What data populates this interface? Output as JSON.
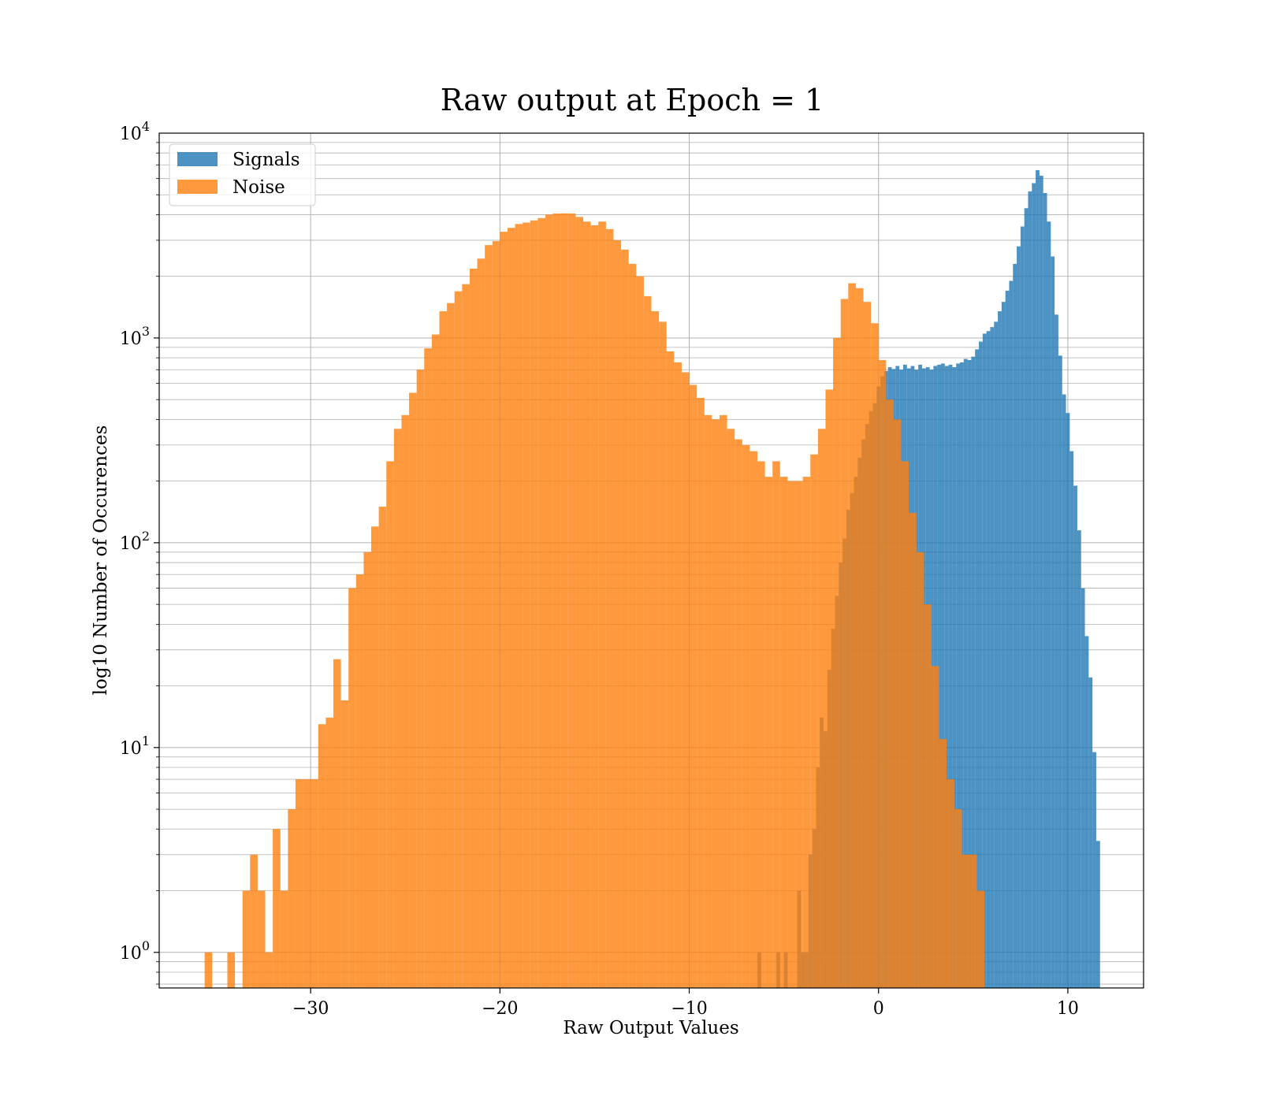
{
  "chart_data": {
    "type": "histogram",
    "title": "Raw output at Epoch = 1",
    "xlabel": "Raw Output Values",
    "ylabel": "log10 Number of Occurences",
    "xlim": [
      -38,
      14
    ],
    "ylim": [
      0.67,
      10000
    ],
    "yscale": "log",
    "grid": true,
    "legend_position": "top-left",
    "x_ticks": [
      {
        "value": -30,
        "label": "−30"
      },
      {
        "value": -20,
        "label": "−20"
      },
      {
        "value": -10,
        "label": "−10"
      },
      {
        "value": 0,
        "label": "0"
      },
      {
        "value": 10,
        "label": "10"
      }
    ],
    "y_ticks": [
      {
        "value": 1,
        "base": "10",
        "exp": "0"
      },
      {
        "value": 10,
        "base": "10",
        "exp": "1"
      },
      {
        "value": 100,
        "base": "10",
        "exp": "2"
      },
      {
        "value": 1000,
        "base": "10",
        "exp": "3"
      },
      {
        "value": 10000,
        "base": "10",
        "exp": "4"
      }
    ],
    "series": [
      {
        "name": "Signals",
        "color": "#1f77b4",
        "opacity": 0.8,
        "bins": [
          [
            -6.4,
            -6.2,
            1
          ],
          [
            -5.4,
            -5.2,
            1
          ],
          [
            -5.0,
            -4.8,
            1
          ],
          [
            -4.3,
            -4.1,
            2
          ],
          [
            -4.1,
            -3.9,
            1
          ],
          [
            -3.9,
            -3.7,
            1
          ],
          [
            -3.7,
            -3.5,
            3
          ],
          [
            -3.5,
            -3.3,
            4
          ],
          [
            -3.3,
            -3.1,
            8
          ],
          [
            -3.1,
            -2.9,
            14
          ],
          [
            -2.9,
            -2.7,
            12
          ],
          [
            -2.7,
            -2.5,
            24
          ],
          [
            -2.5,
            -2.3,
            38
          ],
          [
            -2.3,
            -2.1,
            55
          ],
          [
            -2.1,
            -1.9,
            80
          ],
          [
            -1.9,
            -1.7,
            105
          ],
          [
            -1.7,
            -1.5,
            145
          ],
          [
            -1.5,
            -1.3,
            175
          ],
          [
            -1.3,
            -1.1,
            210
          ],
          [
            -1.1,
            -0.9,
            260
          ],
          [
            -0.9,
            -0.7,
            320
          ],
          [
            -0.7,
            -0.5,
            380
          ],
          [
            -0.5,
            -0.3,
            440
          ],
          [
            -0.3,
            -0.1,
            480
          ],
          [
            -0.1,
            0.1,
            580
          ],
          [
            0.1,
            0.3,
            650
          ],
          [
            0.3,
            0.5,
            690
          ],
          [
            0.5,
            0.7,
            720
          ],
          [
            0.7,
            0.9,
            705
          ],
          [
            0.9,
            1.1,
            730
          ],
          [
            1.1,
            1.3,
            700
          ],
          [
            1.3,
            1.5,
            740
          ],
          [
            1.5,
            1.7,
            710
          ],
          [
            1.7,
            1.9,
            730
          ],
          [
            1.9,
            2.1,
            700
          ],
          [
            2.1,
            2.3,
            740
          ],
          [
            2.3,
            2.5,
            710
          ],
          [
            2.5,
            2.7,
            720
          ],
          [
            2.7,
            2.9,
            700
          ],
          [
            2.9,
            3.1,
            730
          ],
          [
            3.1,
            3.3,
            740
          ],
          [
            3.3,
            3.5,
            750
          ],
          [
            3.5,
            3.7,
            730
          ],
          [
            3.7,
            3.9,
            740
          ],
          [
            3.9,
            4.1,
            720
          ],
          [
            4.1,
            4.3,
            750
          ],
          [
            4.3,
            4.5,
            760
          ],
          [
            4.5,
            4.7,
            790
          ],
          [
            4.7,
            4.9,
            780
          ],
          [
            4.9,
            5.1,
            810
          ],
          [
            5.1,
            5.3,
            880
          ],
          [
            5.3,
            5.5,
            960
          ],
          [
            5.5,
            5.7,
            1050
          ],
          [
            5.7,
            5.9,
            1080
          ],
          [
            5.9,
            6.1,
            1130
          ],
          [
            6.1,
            6.3,
            1200
          ],
          [
            6.3,
            6.5,
            1350
          ],
          [
            6.5,
            6.7,
            1500
          ],
          [
            6.7,
            6.9,
            1700
          ],
          [
            6.9,
            7.1,
            1900
          ],
          [
            7.1,
            7.3,
            2300
          ],
          [
            7.3,
            7.5,
            2800
          ],
          [
            7.5,
            7.7,
            3500
          ],
          [
            7.7,
            7.9,
            4300
          ],
          [
            7.9,
            8.1,
            5200
          ],
          [
            8.1,
            8.3,
            5700
          ],
          [
            8.3,
            8.5,
            6600
          ],
          [
            8.5,
            8.7,
            6200
          ],
          [
            8.7,
            8.9,
            5100
          ],
          [
            8.9,
            9.1,
            3700
          ],
          [
            9.1,
            9.3,
            2500
          ],
          [
            9.3,
            9.5,
            1300
          ],
          [
            9.5,
            9.7,
            820
          ],
          [
            9.7,
            9.9,
            530
          ],
          [
            9.9,
            10.1,
            430
          ],
          [
            10.1,
            10.3,
            280
          ],
          [
            10.3,
            10.5,
            190
          ],
          [
            10.5,
            10.7,
            115
          ],
          [
            10.7,
            10.9,
            60
          ],
          [
            10.9,
            11.1,
            35
          ],
          [
            11.1,
            11.3,
            22
          ],
          [
            11.3,
            11.5,
            9.5
          ],
          [
            11.5,
            11.7,
            3.5
          ]
        ]
      },
      {
        "name": "Noise",
        "color": "#ff7f0e",
        "opacity": 0.8,
        "bins": [
          [
            -35.6,
            -35.2,
            1
          ],
          [
            -34.4,
            -34.0,
            1
          ],
          [
            -33.6,
            -33.2,
            2
          ],
          [
            -33.2,
            -32.8,
            3
          ],
          [
            -32.8,
            -32.4,
            2
          ],
          [
            -32.4,
            -32.0,
            1
          ],
          [
            -32.0,
            -31.6,
            4
          ],
          [
            -31.6,
            -31.2,
            2
          ],
          [
            -31.2,
            -30.8,
            5
          ],
          [
            -30.8,
            -30.4,
            7
          ],
          [
            -30.4,
            -30.0,
            7
          ],
          [
            -30.0,
            -29.6,
            7
          ],
          [
            -29.6,
            -29.2,
            13
          ],
          [
            -29.2,
            -28.8,
            14
          ],
          [
            -28.8,
            -28.4,
            27
          ],
          [
            -28.4,
            -28.0,
            17
          ],
          [
            -28.0,
            -27.6,
            60
          ],
          [
            -27.6,
            -27.2,
            70
          ],
          [
            -27.2,
            -26.8,
            90
          ],
          [
            -26.8,
            -26.4,
            120
          ],
          [
            -26.4,
            -26.0,
            150
          ],
          [
            -26.0,
            -25.6,
            250
          ],
          [
            -25.6,
            -25.2,
            360
          ],
          [
            -25.2,
            -24.8,
            420
          ],
          [
            -24.8,
            -24.4,
            540
          ],
          [
            -24.4,
            -24.0,
            700
          ],
          [
            -24.0,
            -23.6,
            890
          ],
          [
            -23.6,
            -23.2,
            1040
          ],
          [
            -23.2,
            -22.8,
            1350
          ],
          [
            -22.8,
            -22.4,
            1480
          ],
          [
            -22.4,
            -22.0,
            1690
          ],
          [
            -22.0,
            -21.6,
            1830
          ],
          [
            -21.6,
            -21.2,
            2180
          ],
          [
            -21.2,
            -20.8,
            2440
          ],
          [
            -20.8,
            -20.4,
            2840
          ],
          [
            -20.4,
            -20.0,
            2970
          ],
          [
            -20.0,
            -19.6,
            3300
          ],
          [
            -19.6,
            -19.2,
            3450
          ],
          [
            -19.2,
            -18.8,
            3600
          ],
          [
            -18.8,
            -18.4,
            3660
          ],
          [
            -18.4,
            -18.0,
            3750
          ],
          [
            -18.0,
            -17.6,
            3850
          ],
          [
            -17.6,
            -17.2,
            4000
          ],
          [
            -17.2,
            -16.8,
            4050
          ],
          [
            -16.8,
            -16.4,
            4060
          ],
          [
            -16.4,
            -16.0,
            4050
          ],
          [
            -16.0,
            -15.6,
            3900
          ],
          [
            -15.6,
            -15.2,
            3700
          ],
          [
            -15.2,
            -14.8,
            3550
          ],
          [
            -14.8,
            -14.4,
            3700
          ],
          [
            -14.4,
            -14.0,
            3400
          ],
          [
            -14.0,
            -13.6,
            3000
          ],
          [
            -13.6,
            -13.2,
            2700
          ],
          [
            -13.2,
            -12.8,
            2300
          ],
          [
            -12.8,
            -12.4,
            2000
          ],
          [
            -12.4,
            -12.0,
            1600
          ],
          [
            -12.0,
            -11.6,
            1350
          ],
          [
            -11.6,
            -11.2,
            1200
          ],
          [
            -11.2,
            -10.8,
            860
          ],
          [
            -10.8,
            -10.4,
            760
          ],
          [
            -10.4,
            -10.0,
            680
          ],
          [
            -10.0,
            -9.6,
            590
          ],
          [
            -9.6,
            -9.2,
            510
          ],
          [
            -9.2,
            -8.8,
            420
          ],
          [
            -8.8,
            -8.4,
            400
          ],
          [
            -8.4,
            -8.0,
            420
          ],
          [
            -8.0,
            -7.6,
            360
          ],
          [
            -7.6,
            -7.2,
            320
          ],
          [
            -7.2,
            -6.8,
            300
          ],
          [
            -6.8,
            -6.4,
            280
          ],
          [
            -6.4,
            -6.0,
            250
          ],
          [
            -6.0,
            -5.6,
            210
          ],
          [
            -5.6,
            -5.2,
            250
          ],
          [
            -5.2,
            -4.8,
            210
          ],
          [
            -4.8,
            -4.4,
            200
          ],
          [
            -4.4,
            -4.0,
            200
          ],
          [
            -4.0,
            -3.6,
            210
          ],
          [
            -3.6,
            -3.2,
            270
          ],
          [
            -3.2,
            -2.8,
            360
          ],
          [
            -2.8,
            -2.4,
            560
          ],
          [
            -2.4,
            -2.0,
            1000
          ],
          [
            -2.0,
            -1.6,
            1550
          ],
          [
            -1.6,
            -1.2,
            1850
          ],
          [
            -1.2,
            -0.8,
            1750
          ],
          [
            -0.8,
            -0.4,
            1500
          ],
          [
            -0.4,
            0.0,
            1180
          ],
          [
            0.0,
            0.4,
            780
          ],
          [
            0.4,
            0.8,
            500
          ],
          [
            0.8,
            1.2,
            400
          ],
          [
            1.2,
            1.6,
            250
          ],
          [
            1.6,
            2.0,
            140
          ],
          [
            2.0,
            2.4,
            90
          ],
          [
            2.4,
            2.8,
            50
          ],
          [
            2.8,
            3.2,
            25
          ],
          [
            3.2,
            3.6,
            11
          ],
          [
            3.6,
            4.0,
            7
          ],
          [
            4.0,
            4.4,
            5
          ],
          [
            4.4,
            4.8,
            3
          ],
          [
            4.8,
            5.2,
            3
          ],
          [
            5.2,
            5.6,
            2
          ]
        ]
      }
    ]
  }
}
